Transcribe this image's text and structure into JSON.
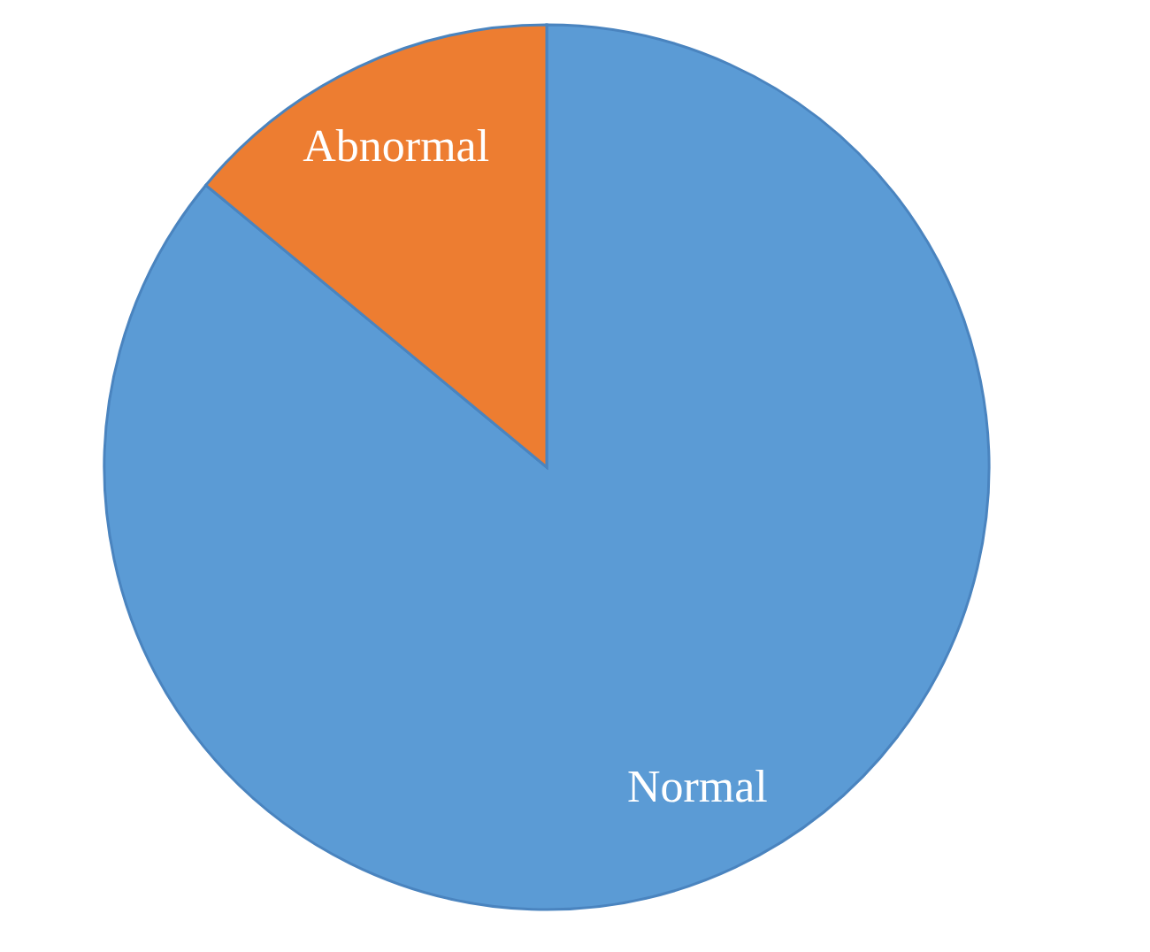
{
  "chart_data": {
    "type": "pie",
    "categories": [
      "Normal",
      "Abnormal"
    ],
    "values": [
      86,
      14
    ],
    "colors": [
      "#5b9bd5",
      "#ed7d31"
    ]
  }
}
